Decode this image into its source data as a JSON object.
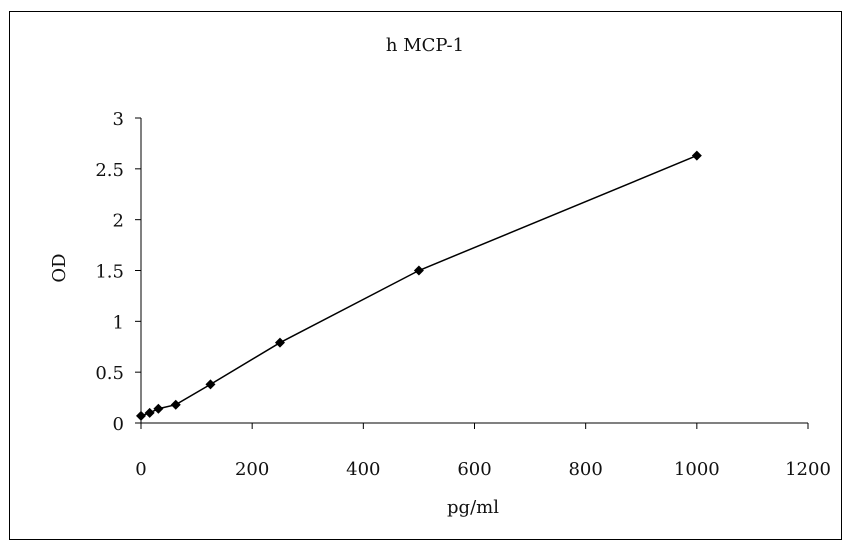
{
  "chart_data": {
    "type": "line",
    "title": "h MCP-1",
    "xlabel": "pg/ml",
    "ylabel": "OD",
    "xlim": [
      0,
      1200
    ],
    "ylim": [
      0,
      3
    ],
    "xticks": [
      "0",
      "200",
      "400",
      "600",
      "800",
      "1000",
      "1200"
    ],
    "yticks": [
      "0",
      "0.5",
      "1",
      "1.5",
      "2",
      "2.5",
      "3"
    ],
    "grid": false,
    "legend": "none",
    "marker": "diamond",
    "colors": {
      "line": "#000000",
      "marker": "#000000"
    },
    "series": [
      {
        "x": [
          0,
          15.6,
          31.25,
          62.5,
          125,
          250,
          500,
          1000
        ],
        "y": [
          0.07,
          0.1,
          0.14,
          0.18,
          0.38,
          0.79,
          1.5,
          2.63
        ]
      }
    ]
  }
}
